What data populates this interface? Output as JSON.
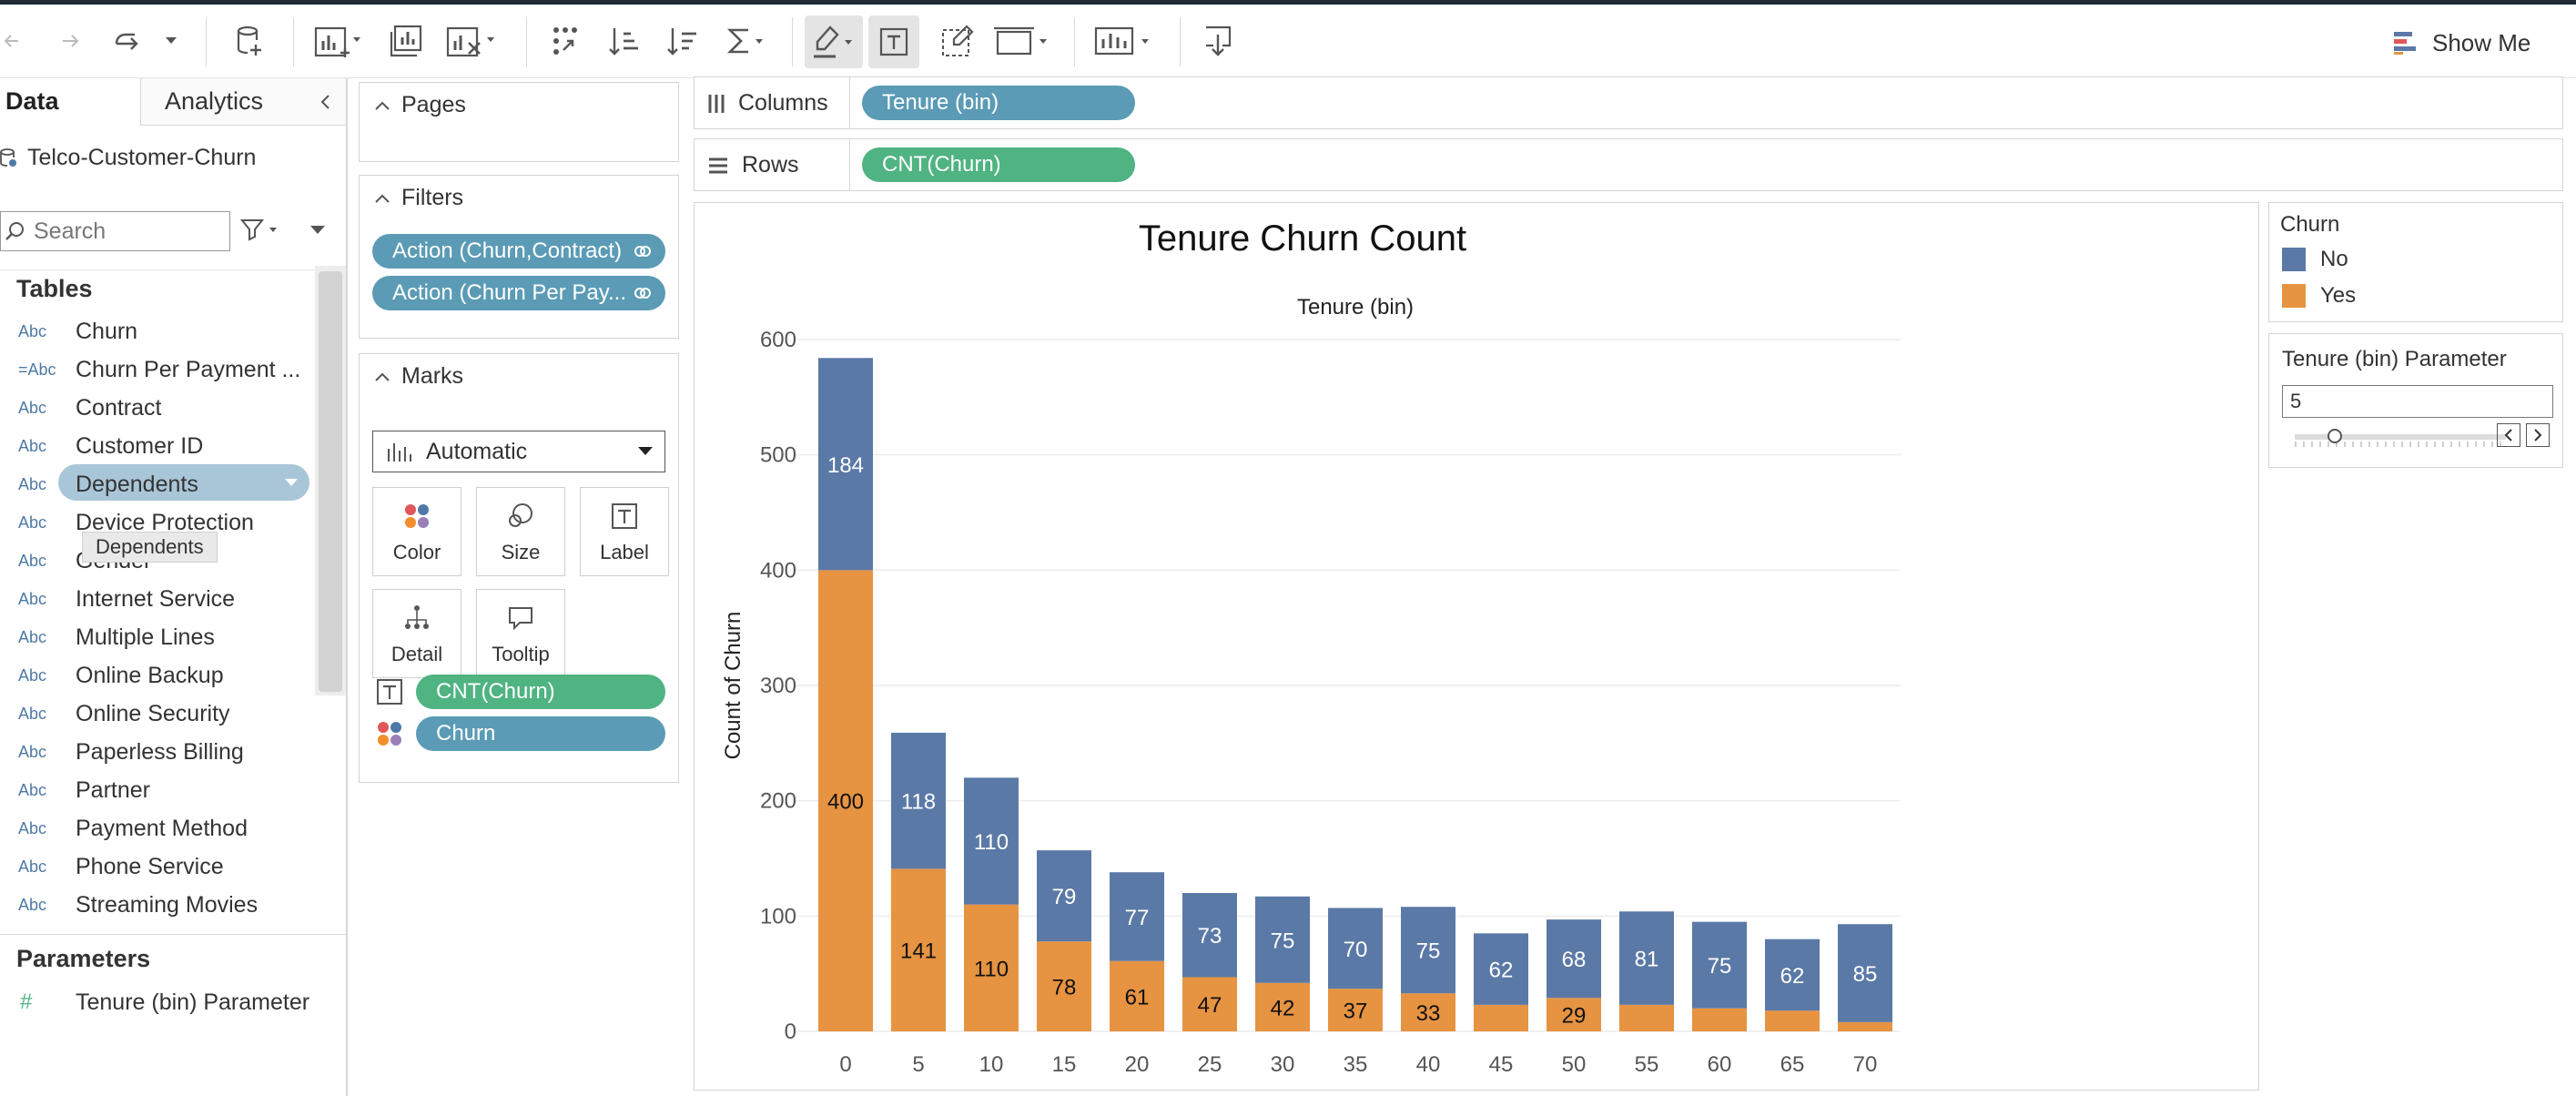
{
  "toolbar": {
    "show_me_label": "Show Me"
  },
  "left_pane": {
    "tabs": [
      "Data",
      "Analytics"
    ],
    "datasource": "Telco-Customer-Churn",
    "search_placeholder": "Search",
    "tables_heading": "Tables",
    "fields": [
      {
        "type": "Abc",
        "name": "Churn"
      },
      {
        "type": "=Abc",
        "name": "Churn Per Payment ..."
      },
      {
        "type": "Abc",
        "name": "Contract"
      },
      {
        "type": "Abc",
        "name": "Customer ID"
      },
      {
        "type": "Abc",
        "name": "Dependents"
      },
      {
        "type": "Abc",
        "name": "Device Protection"
      },
      {
        "type": "Abc",
        "name": "Gender"
      },
      {
        "type": "Abc",
        "name": "Internet Service"
      },
      {
        "type": "Abc",
        "name": "Multiple Lines"
      },
      {
        "type": "Abc",
        "name": "Online Backup"
      },
      {
        "type": "Abc",
        "name": "Online Security"
      },
      {
        "type": "Abc",
        "name": "Paperless Billing"
      },
      {
        "type": "Abc",
        "name": "Partner"
      },
      {
        "type": "Abc",
        "name": "Payment Method"
      },
      {
        "type": "Abc",
        "name": "Phone Service"
      },
      {
        "type": "Abc",
        "name": "Streaming Movies"
      }
    ],
    "tooltip": "Dependents",
    "parameters_heading": "Parameters",
    "parameter": {
      "type": "#",
      "name": "Tenure (bin) Parameter"
    }
  },
  "cards": {
    "pages_label": "Pages",
    "filters_label": "Filters",
    "filters": [
      "Action (Churn,Contract)",
      "Action (Churn Per Pay..."
    ],
    "marks_label": "Marks",
    "mark_type": "Automatic",
    "mark_buttons": [
      "Color",
      "Size",
      "Label",
      "Detail",
      "Tooltip"
    ],
    "mark_pills": [
      "CNT(Churn)",
      "Churn"
    ]
  },
  "shelves": {
    "columns_label": "Columns",
    "columns_pill": "Tenure (bin)",
    "rows_label": "Rows",
    "rows_pill": "CNT(Churn)"
  },
  "legend": {
    "title": "Churn",
    "items": [
      {
        "label": "No",
        "color": "#5b79a6"
      },
      {
        "label": "Yes",
        "color": "#e69342"
      }
    ]
  },
  "parameter_card": {
    "title": "Tenure (bin) Parameter",
    "value": "5"
  },
  "chart_data": {
    "type": "bar",
    "stacked": true,
    "title": "Tenure Churn Count",
    "xlabel": "Tenure (bin)",
    "ylabel": "Count of Churn",
    "ylim": [
      0,
      600
    ],
    "yticks": [
      0,
      100,
      200,
      300,
      400,
      500,
      600
    ],
    "categories": [
      "0",
      "5",
      "10",
      "15",
      "20",
      "25",
      "30",
      "35",
      "40",
      "45",
      "50",
      "55",
      "60",
      "65",
      "70"
    ],
    "series": [
      {
        "name": "Yes",
        "color": "#e69342",
        "values": [
          400,
          141,
          110,
          78,
          61,
          47,
          42,
          37,
          33,
          23,
          29,
          23,
          20,
          18,
          8
        ],
        "labels": [
          "400",
          "141",
          "110",
          "78",
          "61",
          "47",
          "42",
          "37",
          "33",
          "",
          "29",
          "",
          "",
          "",
          ""
        ]
      },
      {
        "name": "No",
        "color": "#5b79a6",
        "values": [
          184,
          118,
          110,
          79,
          77,
          73,
          75,
          70,
          75,
          62,
          68,
          81,
          75,
          62,
          85
        ],
        "labels": [
          "184",
          "118",
          "110",
          "79",
          "77",
          "73",
          "75",
          "70",
          "75",
          "62",
          "68",
          "81",
          "75",
          "62",
          "85"
        ]
      }
    ],
    "grid": true
  }
}
